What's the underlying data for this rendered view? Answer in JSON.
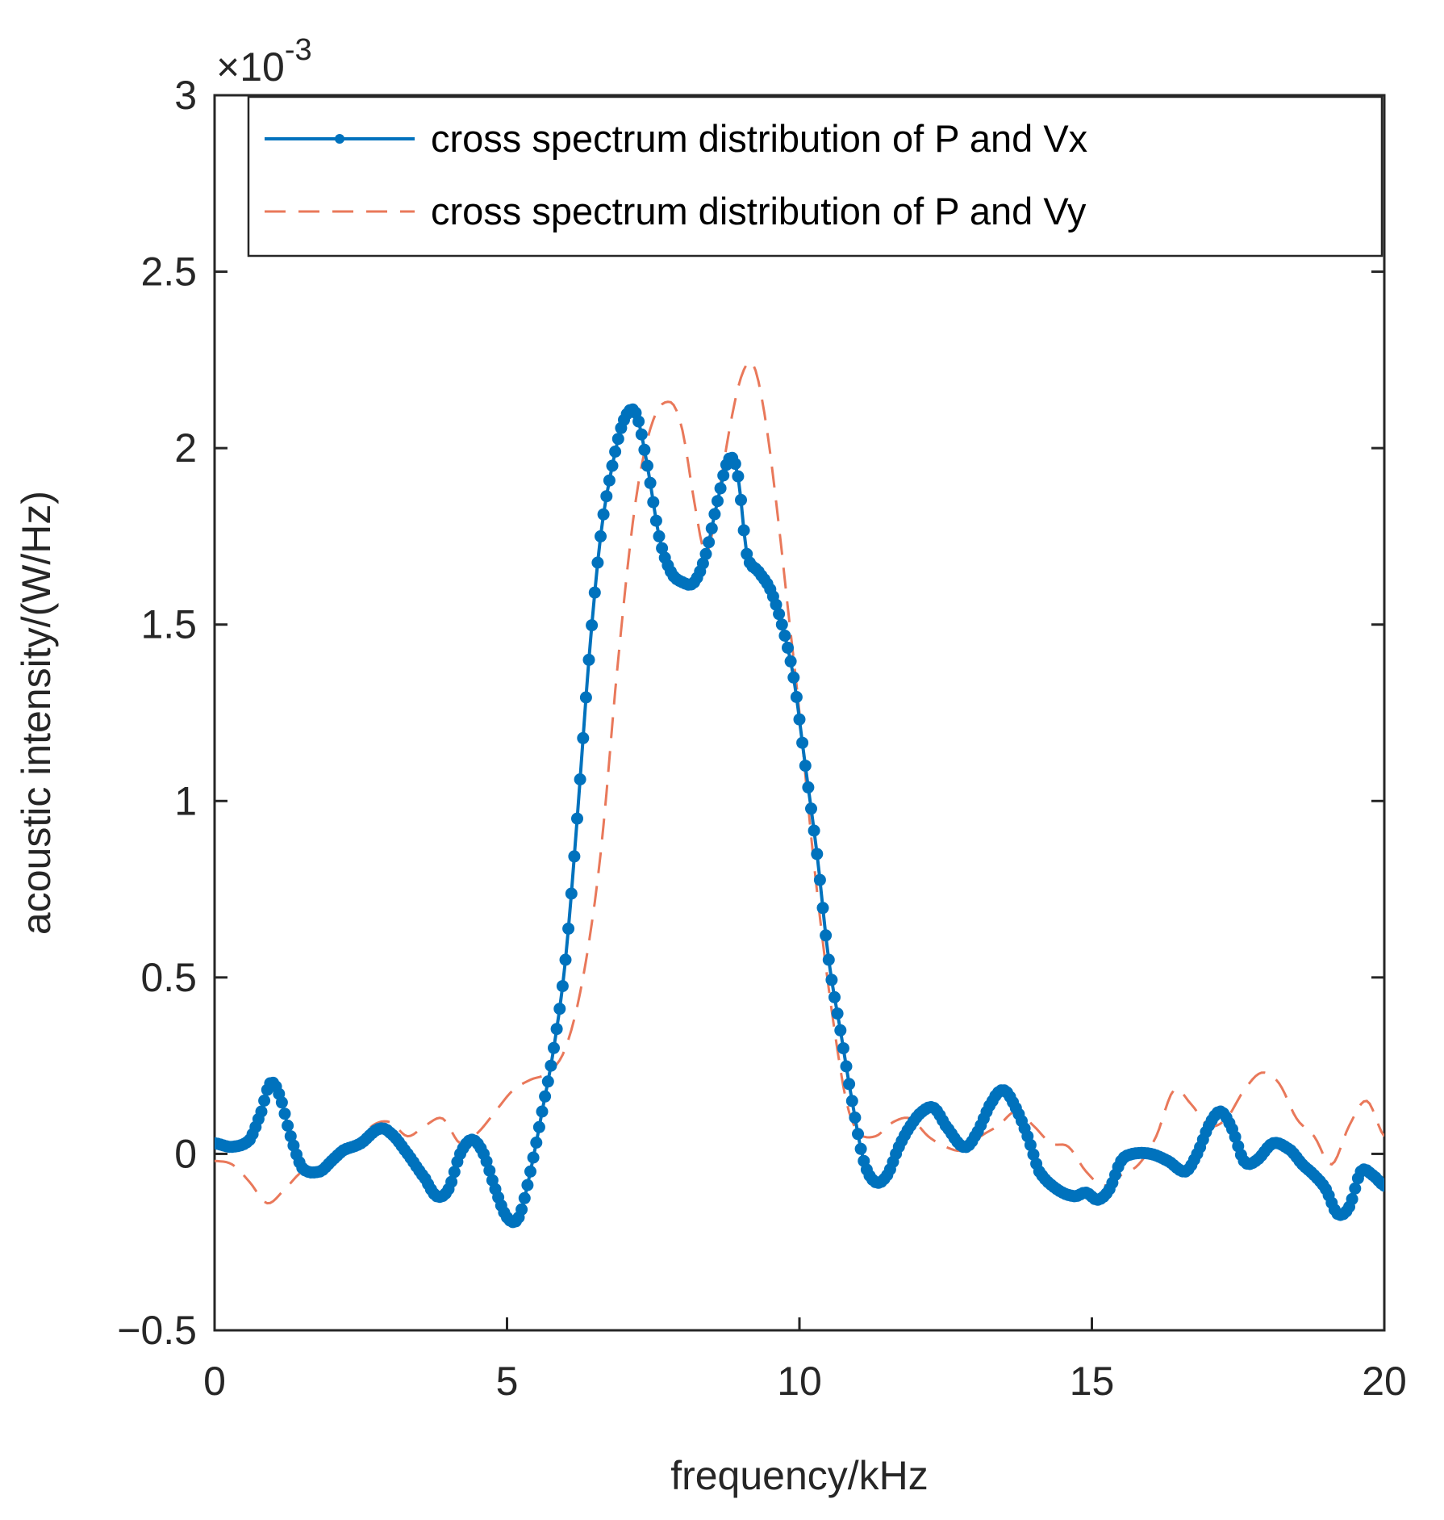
{
  "chart_data": {
    "type": "line",
    "title": "",
    "xlabel": "frequency/kHz",
    "ylabel": "acoustic intensity/(W/Hz)",
    "xlim": [
      0,
      20
    ],
    "ylim": [
      -0.5,
      3
    ],
    "y_scale_factor": {
      "base": "×10",
      "exponent": "-3"
    },
    "xticks": [
      0,
      5,
      10,
      15,
      20
    ],
    "xtick_labels": [
      "0",
      "5",
      "10",
      "15",
      "20"
    ],
    "yticks": [
      -0.5,
      0,
      0.5,
      1,
      1.5,
      2,
      2.5,
      3
    ],
    "ytick_labels": [
      "−0.5",
      "0",
      "0.5",
      "1",
      "1.5",
      "2",
      "2.5",
      "3"
    ],
    "grid": false,
    "legend": {
      "position": "top-right"
    },
    "colors": {
      "vx": "#0072BD",
      "vy": "#E9785A",
      "axis": "#262626"
    },
    "series": [
      {
        "name": "cross spectrum distribution of P and Vx",
        "style": "solid-with-dot-markers",
        "x": [
          0,
          0.3,
          0.6,
          0.8,
          0.95,
          1.1,
          1.3,
          1.5,
          1.8,
          2.0,
          2.2,
          2.5,
          2.8,
          3.0,
          3.3,
          3.6,
          3.8,
          4.0,
          4.2,
          4.4,
          4.6,
          4.8,
          5.0,
          5.2,
          5.4,
          5.6,
          5.8,
          6.0,
          6.2,
          6.4,
          6.6,
          6.8,
          7.0,
          7.2,
          7.4,
          7.6,
          7.8,
          8.0,
          8.2,
          8.4,
          8.6,
          8.8,
          8.95,
          9.1,
          9.3,
          9.5,
          9.7,
          9.9,
          10.1,
          10.3,
          10.5,
          10.7,
          10.9,
          11.1,
          11.3,
          11.5,
          11.7,
          11.9,
          12.1,
          12.3,
          12.5,
          12.8,
          13.0,
          13.3,
          13.5,
          13.7,
          13.9,
          14.1,
          14.4,
          14.7,
          14.9,
          15.1,
          15.3,
          15.5,
          15.7,
          16.0,
          16.3,
          16.6,
          16.8,
          17.0,
          17.2,
          17.4,
          17.6,
          17.8,
          18.1,
          18.4,
          18.6,
          18.8,
          19.0,
          19.2,
          19.4,
          19.6,
          19.8,
          20.0
        ],
        "y": [
          0.03,
          0.02,
          0.04,
          0.12,
          0.2,
          0.17,
          0.05,
          -0.04,
          -0.05,
          -0.02,
          0.01,
          0.03,
          0.07,
          0.06,
          0.0,
          -0.07,
          -0.12,
          -0.1,
          0.0,
          0.04,
          0.0,
          -0.1,
          -0.18,
          -0.18,
          -0.05,
          0.12,
          0.3,
          0.55,
          0.95,
          1.4,
          1.75,
          1.95,
          2.08,
          2.1,
          1.95,
          1.75,
          1.65,
          1.62,
          1.62,
          1.7,
          1.85,
          1.97,
          1.92,
          1.7,
          1.65,
          1.6,
          1.5,
          1.35,
          1.1,
          0.85,
          0.55,
          0.35,
          0.15,
          -0.02,
          -0.08,
          -0.06,
          0.02,
          0.08,
          0.12,
          0.13,
          0.08,
          0.02,
          0.05,
          0.15,
          0.18,
          0.13,
          0.05,
          -0.05,
          -0.1,
          -0.12,
          -0.11,
          -0.13,
          -0.1,
          -0.02,
          0.0,
          0.0,
          -0.02,
          -0.05,
          0.0,
          0.08,
          0.12,
          0.07,
          -0.02,
          -0.02,
          0.03,
          0.01,
          -0.03,
          -0.06,
          -0.1,
          -0.17,
          -0.15,
          -0.05,
          -0.06,
          -0.09
        ]
      },
      {
        "name": "cross spectrum distribution of P and Vy",
        "style": "dashed",
        "x": [
          0,
          0.3,
          0.6,
          0.9,
          1.2,
          1.5,
          1.8,
          2.1,
          2.4,
          2.7,
          3.0,
          3.3,
          3.6,
          3.9,
          4.2,
          4.5,
          4.8,
          5.1,
          5.4,
          5.7,
          6.0,
          6.3,
          6.6,
          6.9,
          7.2,
          7.5,
          7.8,
          8.0,
          8.2,
          8.4,
          8.6,
          8.8,
          9.0,
          9.2,
          9.4,
          9.6,
          9.8,
          10.0,
          10.2,
          10.4,
          10.6,
          10.8,
          11.0,
          11.3,
          11.6,
          11.9,
          12.2,
          12.5,
          12.8,
          13.1,
          13.4,
          13.7,
          14.0,
          14.3,
          14.6,
          14.9,
          15.2,
          15.5,
          15.8,
          16.1,
          16.4,
          16.7,
          17.0,
          17.3,
          17.6,
          17.9,
          18.2,
          18.5,
          18.8,
          19.1,
          19.4,
          19.7,
          20.0
        ],
        "y": [
          -0.02,
          -0.03,
          -0.08,
          -0.14,
          -0.1,
          -0.05,
          -0.04,
          -0.02,
          0.02,
          0.08,
          0.09,
          0.05,
          0.08,
          0.1,
          0.03,
          0.06,
          0.12,
          0.18,
          0.21,
          0.23,
          0.3,
          0.5,
          0.85,
          1.4,
          1.85,
          2.08,
          2.13,
          2.05,
          1.85,
          1.7,
          1.85,
          2.05,
          2.2,
          2.24,
          2.1,
          1.85,
          1.55,
          1.25,
          0.9,
          0.6,
          0.35,
          0.15,
          0.06,
          0.05,
          0.09,
          0.1,
          0.05,
          0.02,
          0.01,
          0.05,
          0.08,
          0.12,
          0.08,
          0.03,
          0.02,
          -0.05,
          -0.09,
          -0.06,
          -0.03,
          0.05,
          0.18,
          0.14,
          0.08,
          0.1,
          0.18,
          0.23,
          0.2,
          0.1,
          0.05,
          -0.03,
          0.08,
          0.15,
          0.05
        ]
      }
    ]
  }
}
